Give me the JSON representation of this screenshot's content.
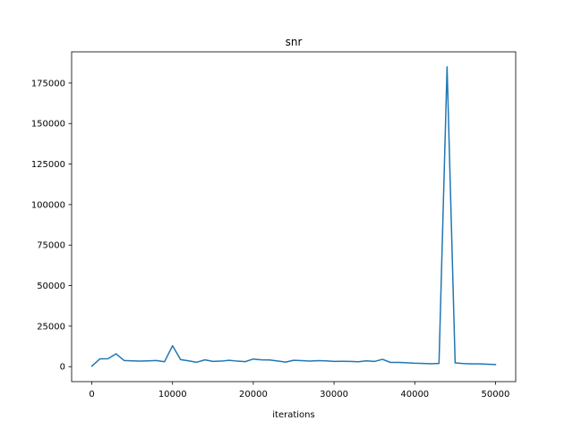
{
  "chart_data": {
    "type": "line",
    "title": "snr",
    "xlabel": "iterations",
    "ylabel": "",
    "xlim": [
      -2500,
      52500
    ],
    "ylim": [
      -9250,
      194250
    ],
    "grid": false,
    "color": "#1f77b4",
    "xticks": [
      0,
      10000,
      20000,
      30000,
      40000,
      50000
    ],
    "xtick_labels": [
      "0",
      "10000",
      "20000",
      "30000",
      "40000",
      "50000"
    ],
    "yticks": [
      0,
      25000,
      50000,
      75000,
      100000,
      125000,
      150000,
      175000
    ],
    "ytick_labels": [
      "0",
      "25000",
      "50000",
      "75000",
      "100000",
      "125000",
      "150000",
      "175000"
    ],
    "series": [
      {
        "x": [
          0,
          1000,
          2000,
          3000,
          4000,
          5000,
          6000,
          7000,
          8000,
          9000,
          10000,
          11000,
          12000,
          13000,
          14000,
          15000,
          16000,
          17000,
          18000,
          19000,
          20000,
          21000,
          22000,
          23000,
          24000,
          25000,
          26000,
          27000,
          28000,
          29000,
          30000,
          31000,
          32000,
          33000,
          34000,
          35000,
          36000,
          37000,
          38000,
          39000,
          40000,
          41000,
          42000,
          43000,
          44000,
          45000,
          46000,
          47000,
          48000,
          49000,
          50000
        ],
        "y": [
          300,
          4800,
          4900,
          7900,
          3800,
          3600,
          3400,
          3600,
          3800,
          3000,
          12900,
          4300,
          3600,
          2700,
          4200,
          3200,
          3400,
          3900,
          3400,
          3100,
          4700,
          4200,
          4100,
          3500,
          2800,
          3900,
          3700,
          3400,
          3700,
          3600,
          3200,
          3300,
          3200,
          3000,
          3600,
          3200,
          4500,
          2600,
          2600,
          2400,
          2100,
          2000,
          1800,
          2000,
          185000,
          2300,
          1900,
          1700,
          1700,
          1500,
          1300
        ]
      }
    ]
  }
}
